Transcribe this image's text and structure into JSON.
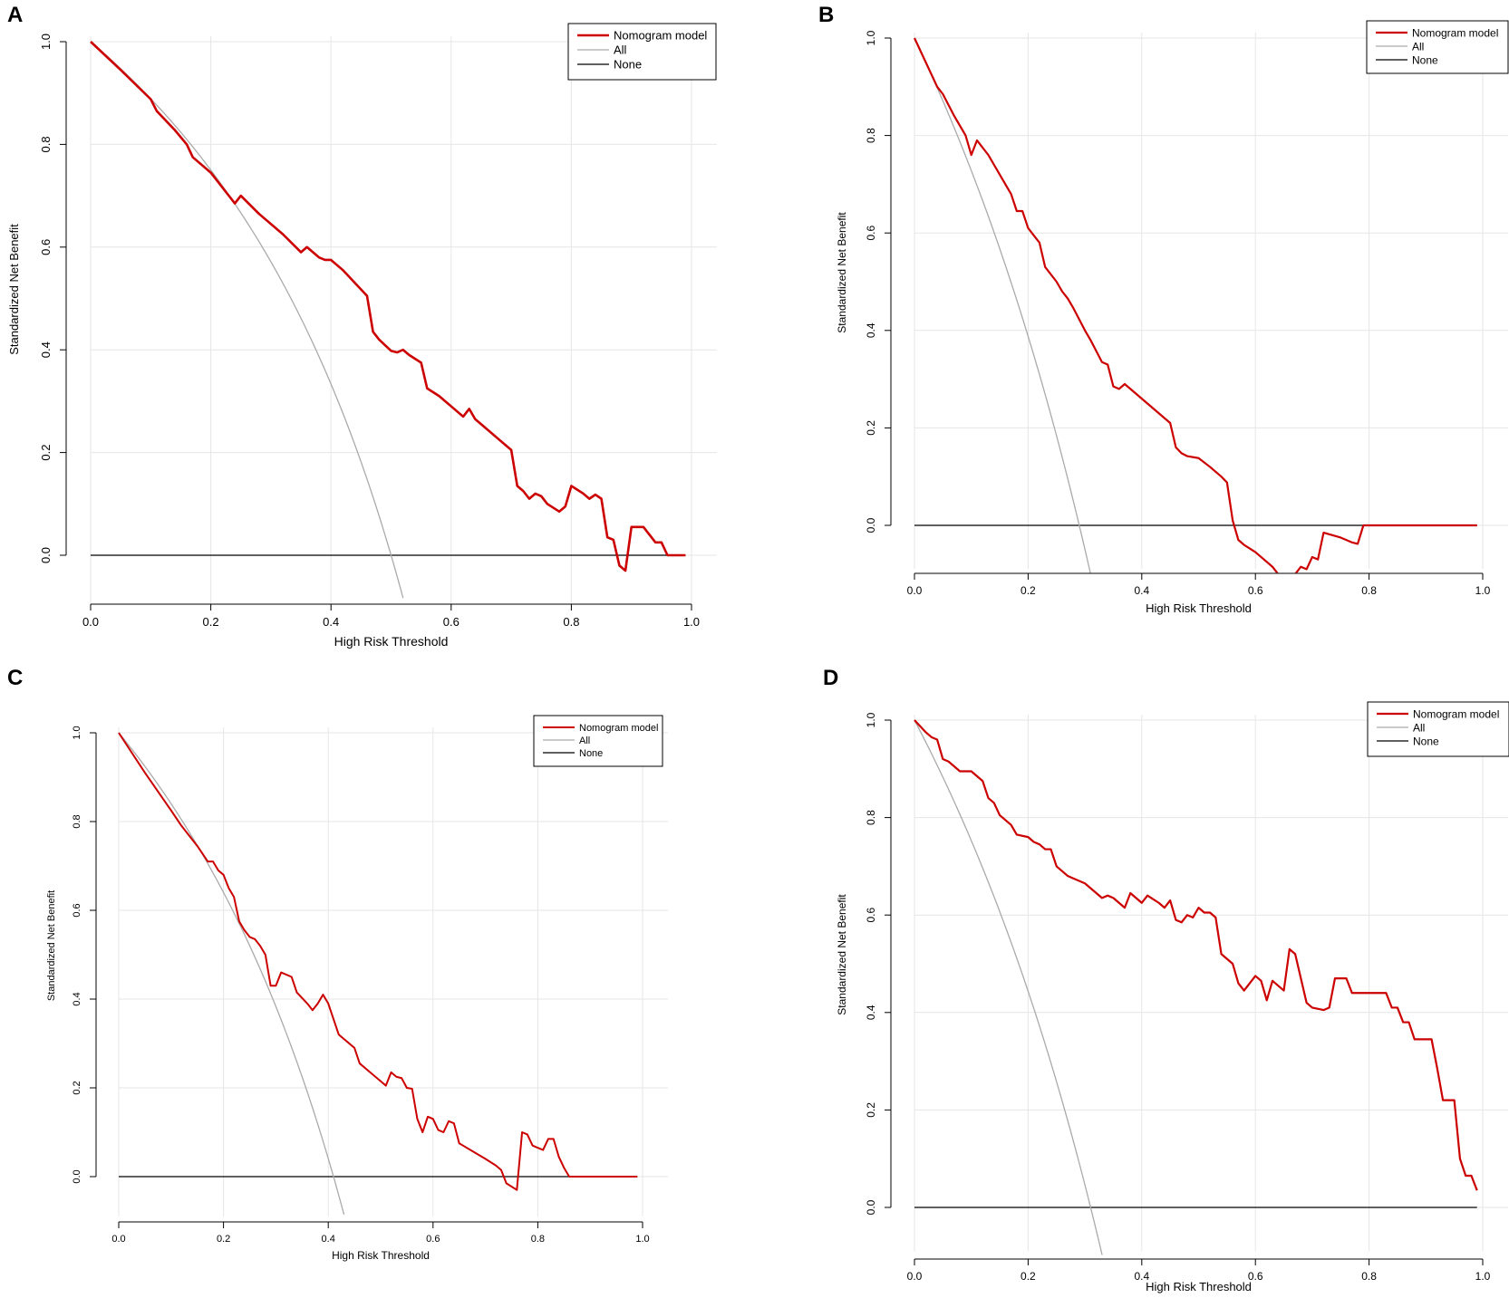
{
  "chart_data": [
    {
      "type": "line",
      "panel": "A",
      "title": "",
      "xlabel": "High Risk Threshold",
      "ylabel": "Standardized Net Benefit",
      "xlim": [
        0,
        1
      ],
      "ylim": [
        -0.1,
        1
      ],
      "xticks": [
        "0.0",
        "0.2",
        "0.4",
        "0.6",
        "0.8",
        "1.0"
      ],
      "yticks": [
        "0.0",
        "0.2",
        "0.4",
        "0.6",
        "0.8",
        "1.0"
      ],
      "grid": true,
      "legend_position": "top-right",
      "prevalence": 0.5,
      "series": [
        {
          "name": "Nomogram model",
          "color": "#cc0000",
          "x": [
            0.0,
            0.05,
            0.1,
            0.11,
            0.14,
            0.16,
            0.17,
            0.2,
            0.24,
            0.25,
            0.28,
            0.32,
            0.35,
            0.36,
            0.38,
            0.39,
            0.4,
            0.42,
            0.44,
            0.46,
            0.47,
            0.48,
            0.5,
            0.51,
            0.52,
            0.53,
            0.55,
            0.56,
            0.58,
            0.6,
            0.62,
            0.63,
            0.64,
            0.65,
            0.68,
            0.69,
            0.7,
            0.71,
            0.72,
            0.73,
            0.74,
            0.75,
            0.76,
            0.78,
            0.79,
            0.8,
            0.82,
            0.83,
            0.84,
            0.85,
            0.86,
            0.87,
            0.88,
            0.89,
            0.9,
            0.91,
            0.92,
            0.93,
            0.94,
            0.95,
            0.96,
            0.97,
            0.98,
            0.99
          ],
          "y": [
            1.0,
            0.945,
            0.888,
            0.865,
            0.828,
            0.8,
            0.775,
            0.745,
            0.685,
            0.7,
            0.665,
            0.625,
            0.59,
            0.6,
            0.58,
            0.575,
            0.575,
            0.555,
            0.53,
            0.505,
            0.435,
            0.42,
            0.398,
            0.395,
            0.4,
            0.39,
            0.375,
            0.325,
            0.31,
            0.29,
            0.27,
            0.285,
            0.265,
            0.255,
            0.225,
            0.215,
            0.205,
            0.135,
            0.125,
            0.11,
            0.12,
            0.115,
            0.1,
            0.085,
            0.095,
            0.135,
            0.12,
            0.11,
            0.118,
            0.11,
            0.035,
            0.03,
            -0.02,
            -0.03,
            0.055,
            0.055,
            0.055,
            0.04,
            0.025,
            0.025,
            0.0,
            0.0,
            0.0,
            0.0
          ]
        },
        {
          "name": "All",
          "color": "#aaaaaa",
          "x_range": [
            0,
            0.52
          ]
        },
        {
          "name": "None",
          "color": "#000000",
          "x_range": [
            0,
            0.99
          ],
          "y": 0
        }
      ]
    },
    {
      "type": "line",
      "panel": "B",
      "title": "",
      "xlabel": "High Risk Threshold",
      "ylabel": "Standardized Net Benefit",
      "xlim": [
        0,
        1
      ],
      "ylim": [
        -0.09,
        1
      ],
      "xticks": [
        "0.0",
        "0.2",
        "0.4",
        "0.6",
        "0.8",
        "1.0"
      ],
      "yticks": [
        "0.0",
        "0.2",
        "0.4",
        "0.6",
        "0.8",
        "1.0"
      ],
      "grid": true,
      "legend_position": "top-right",
      "prevalence": 0.29,
      "series": [
        {
          "name": "Nomogram model",
          "color": "#cc0000",
          "x": [
            0.0,
            0.02,
            0.04,
            0.05,
            0.07,
            0.09,
            0.1,
            0.11,
            0.13,
            0.15,
            0.17,
            0.18,
            0.19,
            0.2,
            0.22,
            0.23,
            0.25,
            0.26,
            0.27,
            0.28,
            0.3,
            0.31,
            0.33,
            0.34,
            0.35,
            0.36,
            0.37,
            0.39,
            0.41,
            0.43,
            0.45,
            0.46,
            0.47,
            0.48,
            0.5,
            0.52,
            0.54,
            0.55,
            0.56,
            0.57,
            0.58,
            0.6,
            0.63,
            0.64,
            0.65,
            0.66,
            0.67,
            0.68,
            0.69,
            0.7,
            0.71,
            0.72,
            0.75,
            0.76,
            0.77,
            0.78,
            0.79,
            0.8,
            0.85,
            0.9,
            0.95,
            0.99
          ],
          "y": [
            1.0,
            0.95,
            0.9,
            0.885,
            0.84,
            0.8,
            0.76,
            0.79,
            0.76,
            0.72,
            0.68,
            0.645,
            0.645,
            0.61,
            0.58,
            0.53,
            0.5,
            0.48,
            0.465,
            0.445,
            0.4,
            0.38,
            0.335,
            0.33,
            0.285,
            0.28,
            0.29,
            0.27,
            0.25,
            0.23,
            0.21,
            0.16,
            0.148,
            0.142,
            0.138,
            0.12,
            0.1,
            0.088,
            0.01,
            -0.03,
            -0.04,
            -0.055,
            -0.085,
            -0.1,
            -0.1,
            -0.1,
            -0.1,
            -0.085,
            -0.09,
            -0.065,
            -0.07,
            -0.015,
            -0.025,
            -0.03,
            -0.035,
            -0.038,
            0.0,
            0.0,
            0.0,
            0.0,
            0.0,
            0.0
          ]
        },
        {
          "name": "All",
          "color": "#aaaaaa",
          "x_range": [
            0,
            0.31
          ]
        },
        {
          "name": "None",
          "color": "#000000",
          "x_range": [
            0,
            0.99
          ],
          "y": 0
        }
      ]
    },
    {
      "type": "line",
      "panel": "C",
      "title": "",
      "xlabel": "High Risk Threshold",
      "ylabel": "Standardized Net Benefit",
      "xlim": [
        0,
        1
      ],
      "ylim": [
        -0.09,
        1
      ],
      "xticks": [
        "0.0",
        "0.2",
        "0.4",
        "0.6",
        "0.8",
        "1.0"
      ],
      "yticks": [
        "0.0",
        "0.2",
        "0.4",
        "0.6",
        "0.8",
        "1.0"
      ],
      "grid": true,
      "legend_position": "top-right",
      "prevalence": 0.41,
      "series": [
        {
          "name": "Nomogram model",
          "color": "#cc0000",
          "x": [
            0.0,
            0.05,
            0.1,
            0.12,
            0.15,
            0.17,
            0.18,
            0.19,
            0.2,
            0.21,
            0.22,
            0.23,
            0.24,
            0.25,
            0.26,
            0.27,
            0.28,
            0.29,
            0.3,
            0.31,
            0.33,
            0.34,
            0.36,
            0.37,
            0.38,
            0.39,
            0.4,
            0.41,
            0.42,
            0.44,
            0.45,
            0.46,
            0.48,
            0.49,
            0.5,
            0.51,
            0.52,
            0.53,
            0.54,
            0.55,
            0.56,
            0.57,
            0.58,
            0.59,
            0.6,
            0.61,
            0.62,
            0.63,
            0.64,
            0.65,
            0.7,
            0.72,
            0.73,
            0.74,
            0.76,
            0.77,
            0.78,
            0.79,
            0.8,
            0.81,
            0.82,
            0.83,
            0.84,
            0.85,
            0.86,
            0.9,
            0.95,
            0.99
          ],
          "y": [
            1.0,
            0.91,
            0.825,
            0.79,
            0.745,
            0.71,
            0.71,
            0.69,
            0.68,
            0.65,
            0.63,
            0.575,
            0.555,
            0.54,
            0.535,
            0.52,
            0.5,
            0.43,
            0.43,
            0.46,
            0.45,
            0.415,
            0.39,
            0.375,
            0.39,
            0.41,
            0.39,
            0.355,
            0.32,
            0.3,
            0.29,
            0.255,
            0.235,
            0.225,
            0.215,
            0.205,
            0.235,
            0.225,
            0.222,
            0.2,
            0.198,
            0.13,
            0.1,
            0.135,
            0.13,
            0.105,
            0.1,
            0.125,
            0.12,
            0.075,
            0.04,
            0.025,
            0.015,
            -0.015,
            -0.03,
            0.1,
            0.095,
            0.07,
            0.065,
            0.06,
            0.085,
            0.085,
            0.045,
            0.02,
            0.0,
            0.0,
            0.0,
            0.0
          ]
        },
        {
          "name": "All",
          "color": "#aaaaaa",
          "x_range": [
            0,
            0.43
          ]
        },
        {
          "name": "None",
          "color": "#000000",
          "x_range": [
            0,
            0.99
          ],
          "y": 0
        }
      ]
    },
    {
      "type": "line",
      "panel": "D",
      "title": "",
      "xlabel": "High Risk Threshold",
      "ylabel": "Standardized Net Benefit",
      "xlim": [
        0,
        1
      ],
      "ylim": [
        -0.09,
        1
      ],
      "xticks": [
        "0.0",
        "0.2",
        "0.4",
        "0.6",
        "0.8",
        "1.0"
      ],
      "yticks": [
        "0.0",
        "0.2",
        "0.4",
        "0.6",
        "0.8",
        "1.0"
      ],
      "grid": true,
      "legend_position": "top-right",
      "prevalence": 0.31,
      "series": [
        {
          "name": "Nomogram model",
          "color": "#cc0000",
          "x": [
            0.0,
            0.02,
            0.03,
            0.04,
            0.05,
            0.06,
            0.07,
            0.08,
            0.1,
            0.11,
            0.12,
            0.13,
            0.14,
            0.15,
            0.16,
            0.17,
            0.18,
            0.2,
            0.21,
            0.22,
            0.23,
            0.24,
            0.25,
            0.27,
            0.28,
            0.3,
            0.31,
            0.33,
            0.34,
            0.35,
            0.37,
            0.38,
            0.39,
            0.4,
            0.41,
            0.43,
            0.44,
            0.45,
            0.46,
            0.47,
            0.48,
            0.49,
            0.5,
            0.51,
            0.52,
            0.53,
            0.54,
            0.55,
            0.56,
            0.57,
            0.58,
            0.6,
            0.61,
            0.62,
            0.63,
            0.64,
            0.65,
            0.66,
            0.67,
            0.69,
            0.7,
            0.72,
            0.73,
            0.74,
            0.75,
            0.76,
            0.77,
            0.78,
            0.79,
            0.8,
            0.81,
            0.82,
            0.83,
            0.84,
            0.85,
            0.86,
            0.87,
            0.88,
            0.9,
            0.91,
            0.92,
            0.93,
            0.94,
            0.95,
            0.96,
            0.97,
            0.98,
            0.99
          ],
          "y": [
            1.0,
            0.975,
            0.965,
            0.96,
            0.92,
            0.915,
            0.905,
            0.895,
            0.895,
            0.885,
            0.875,
            0.84,
            0.83,
            0.805,
            0.795,
            0.785,
            0.765,
            0.76,
            0.75,
            0.745,
            0.735,
            0.735,
            0.7,
            0.68,
            0.675,
            0.665,
            0.655,
            0.635,
            0.64,
            0.635,
            0.615,
            0.645,
            0.635,
            0.625,
            0.64,
            0.625,
            0.615,
            0.63,
            0.59,
            0.585,
            0.6,
            0.595,
            0.615,
            0.605,
            0.605,
            0.595,
            0.52,
            0.51,
            0.5,
            0.46,
            0.445,
            0.475,
            0.465,
            0.425,
            0.465,
            0.455,
            0.445,
            0.53,
            0.52,
            0.42,
            0.41,
            0.405,
            0.41,
            0.47,
            0.47,
            0.47,
            0.44,
            0.44,
            0.44,
            0.44,
            0.44,
            0.44,
            0.44,
            0.41,
            0.41,
            0.38,
            0.38,
            0.345,
            0.345,
            0.345,
            0.285,
            0.22,
            0.22,
            0.22,
            0.1,
            0.065,
            0.065,
            0.035
          ]
        },
        {
          "name": "All",
          "color": "#aaaaaa",
          "x_range": [
            0,
            0.34
          ]
        },
        {
          "name": "None",
          "color": "#000000",
          "x_range": [
            0,
            0.99
          ],
          "y": 0
        }
      ]
    }
  ]
}
